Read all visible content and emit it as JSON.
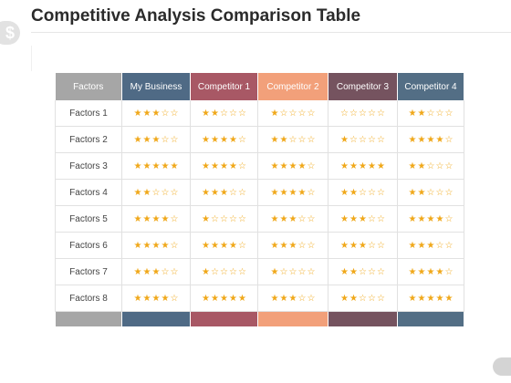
{
  "title": "Competitive Analysis Comparison Table",
  "badge_glyph": "$",
  "columns": [
    {
      "label": "Factors",
      "color": "#a6a6a6"
    },
    {
      "label": "My Business",
      "color": "#4f6a85"
    },
    {
      "label": "Competitor 1",
      "color": "#a85865"
    },
    {
      "label": "Competitor 2",
      "color": "#f2a07a"
    },
    {
      "label": "Competitor 3",
      "color": "#75535f"
    },
    {
      "label": "Competitor 4",
      "color": "#536e85"
    }
  ],
  "max_stars": 5,
  "star_color": "#f0a81a",
  "rows": [
    {
      "label": "Factors 1",
      "ratings": [
        3,
        2,
        1,
        0,
        2
      ]
    },
    {
      "label": "Factors 2",
      "ratings": [
        3,
        4,
        2,
        1,
        4
      ]
    },
    {
      "label": "Factors 3",
      "ratings": [
        5,
        4,
        4,
        5,
        2
      ]
    },
    {
      "label": "Factors 4",
      "ratings": [
        2,
        3,
        4,
        2,
        2
      ]
    },
    {
      "label": "Factors 5",
      "ratings": [
        4,
        1,
        3,
        3,
        4
      ]
    },
    {
      "label": "Factors 6",
      "ratings": [
        4,
        4,
        3,
        3,
        3
      ]
    },
    {
      "label": "Factors 7",
      "ratings": [
        3,
        1,
        1,
        2,
        4
      ]
    },
    {
      "label": "Factors 8",
      "ratings": [
        4,
        5,
        3,
        2,
        5
      ]
    }
  ]
}
